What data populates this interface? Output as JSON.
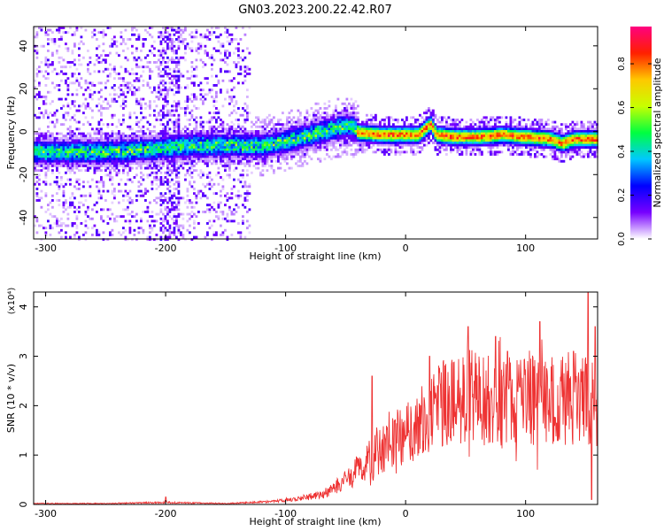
{
  "title": "GN03.2023.200.22.42.R07",
  "chart_data": [
    {
      "type": "heatmap",
      "xlabel": "Height of straight line (km)",
      "ylabel": "Frequency (Hz)",
      "xlim": [
        -310,
        160
      ],
      "ylim": [
        -50,
        49
      ],
      "xticks": [
        "-300",
        "-200",
        "-100",
        "0",
        "100"
      ],
      "xtick_values": [
        -300,
        -200,
        -100,
        0,
        100
      ],
      "yticks": [
        "40",
        "20",
        "0",
        "-20",
        "-40"
      ],
      "ytick_values": [
        40,
        20,
        0,
        -20,
        -40
      ],
      "colorbar": {
        "label": "Normalized spectral amplitude",
        "range": [
          0,
          0.97
        ],
        "ticks": [
          "0.0",
          "0.2",
          "0.4",
          "0.6",
          "0.8"
        ],
        "tick_values": [
          0.0,
          0.2,
          0.4,
          0.6,
          0.8
        ],
        "colormap": [
          "#ffffff",
          "#7700ff",
          "#0000ff",
          "#00c8ff",
          "#00ff40",
          "#c8ff00",
          "#ffc800",
          "#ff2000",
          "#ff0080"
        ]
      },
      "ridge": {
        "x": [
          -310,
          -280,
          -250,
          -220,
          -200,
          -180,
          -160,
          -140,
          -120,
          -100,
          -80,
          -60,
          -45,
          -40,
          -20,
          0,
          10,
          20,
          25,
          40,
          60,
          80,
          100,
          120,
          130,
          140,
          160
        ],
        "y": [
          -9,
          -9,
          -9,
          -8,
          -7,
          -6,
          -6,
          -6,
          -6,
          -4,
          -1,
          2,
          3,
          0,
          -1,
          -1,
          -1,
          4,
          -1,
          -2,
          -2,
          -1,
          -2,
          -3,
          -5,
          -3,
          -3
        ]
      },
      "noise_region": [
        -310,
        -130
      ]
    },
    {
      "type": "line",
      "xlabel": "Height of straight line (km)",
      "ylabel": "SNR (10 * v/v)",
      "y_multiplier": "(x10⁴)",
      "xlim": [
        -310,
        160
      ],
      "ylim": [
        0,
        4.3
      ],
      "xticks": [
        "-300",
        "-200",
        "-100",
        "0",
        "100"
      ],
      "xtick_values": [
        -300,
        -200,
        -100,
        0,
        100
      ],
      "yticks": [
        "0",
        "1",
        "2",
        "3",
        "4"
      ],
      "ytick_values": [
        0,
        1,
        2,
        3,
        4
      ],
      "color": "#ee3333",
      "envelope": {
        "x": [
          -310,
          -250,
          -200,
          -150,
          -110,
          -90,
          -70,
          -60,
          -50,
          -40,
          -30,
          -20,
          -10,
          0,
          10,
          20,
          30,
          50,
          70,
          90,
          110,
          130,
          150,
          160
        ],
        "y": [
          0.02,
          0.02,
          0.04,
          0.02,
          0.06,
          0.12,
          0.2,
          0.3,
          0.5,
          0.7,
          0.9,
          1.1,
          1.3,
          1.4,
          1.6,
          1.8,
          2.0,
          2.2,
          2.1,
          2.2,
          2.15,
          2.1,
          2.2,
          2.1
        ]
      },
      "spikes": [
        {
          "x": -200,
          "y": 0.15
        },
        {
          "x": -28,
          "y": 2.6
        },
        {
          "x": 20,
          "y": 3.0
        },
        {
          "x": 52,
          "y": 3.6
        },
        {
          "x": 75,
          "y": 3.4
        },
        {
          "x": 85,
          "y": 3.1
        },
        {
          "x": 112,
          "y": 3.7
        },
        {
          "x": 140,
          "y": 3.1
        },
        {
          "x": 152,
          "y": 4.3
        },
        {
          "x": 158,
          "y": 3.6
        },
        {
          "x": 155,
          "y": 0.1
        }
      ]
    }
  ]
}
